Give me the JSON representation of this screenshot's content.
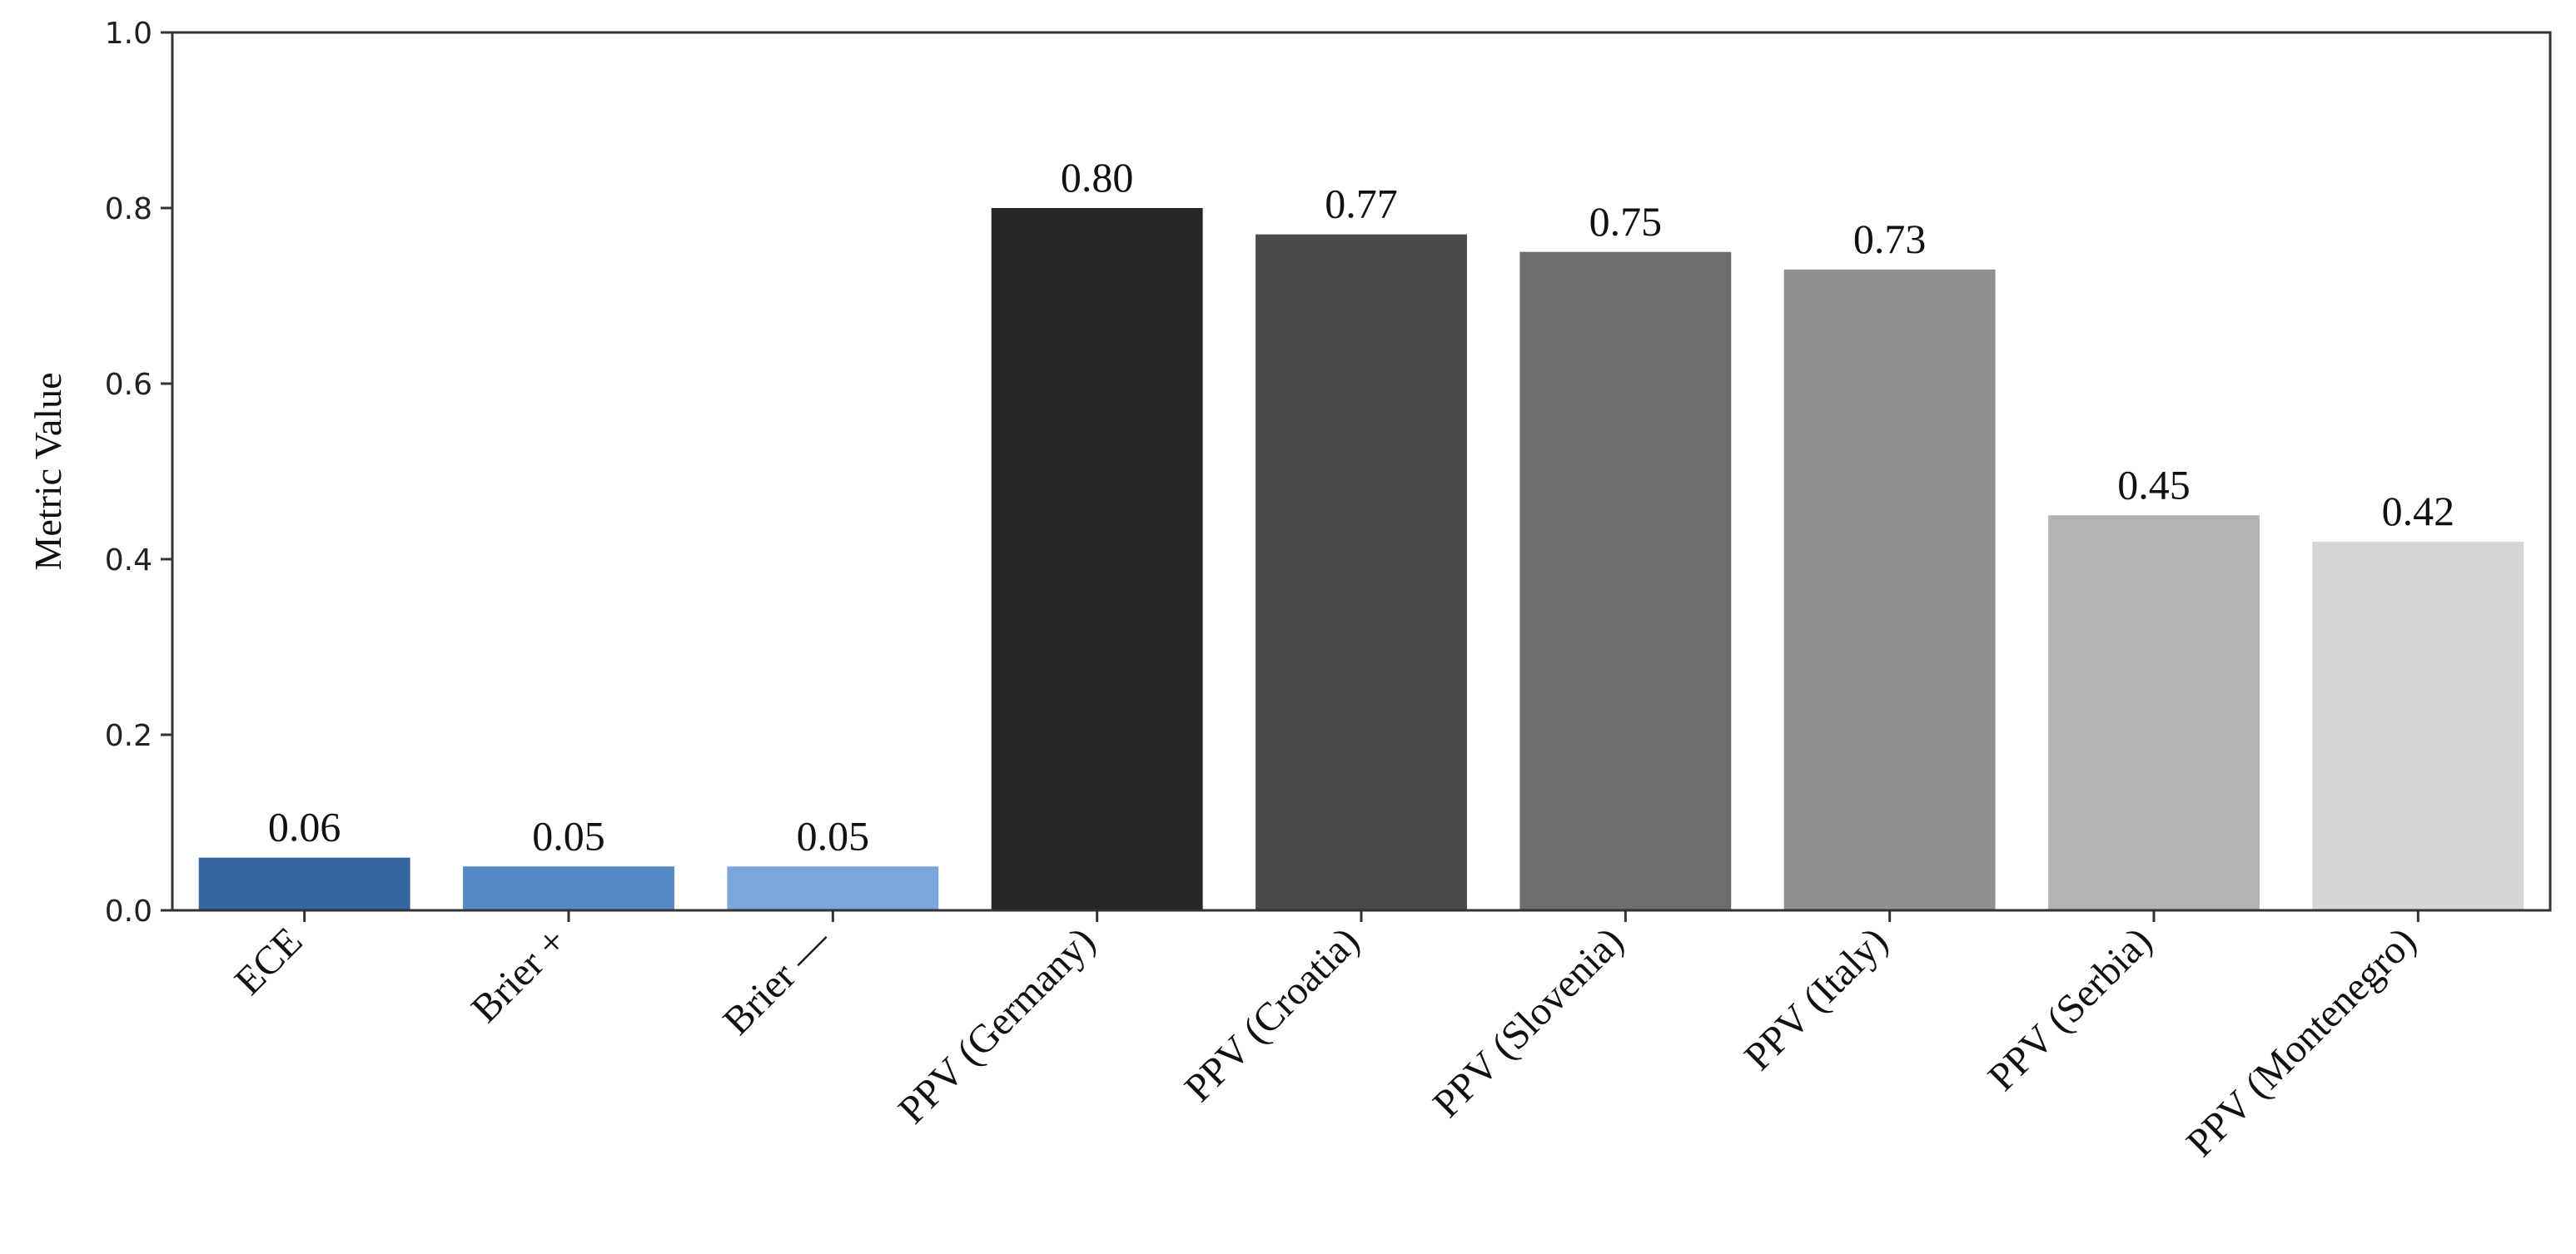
{
  "chart_data": {
    "type": "bar",
    "categories": [
      "ECE",
      "Brier +",
      "Brier —",
      "PPV (Germany)",
      "PPV (Croatia)",
      "PPV (Slovenia)",
      "PPV (Italy)",
      "PPV (Serbia)",
      "PPV (Montenegro)"
    ],
    "values": [
      0.06,
      0.05,
      0.05,
      0.8,
      0.77,
      0.75,
      0.73,
      0.45,
      0.42
    ],
    "value_labels": [
      "0.06",
      "0.05",
      "0.05",
      "0.80",
      "0.77",
      "0.75",
      "0.73",
      "0.45",
      "0.42"
    ],
    "colors": [
      "#3765a3",
      "#5588c6",
      "#7ca5d9",
      "#262626",
      "#4a4a4a",
      "#6d6d6d",
      "#909090",
      "#b3b3b3",
      "#d6d6d6"
    ],
    "ylabel": "Metric Value",
    "xlabel": "",
    "ylim": [
      0,
      1.0
    ],
    "yticks": [
      0.0,
      0.2,
      0.4,
      0.6,
      0.8,
      1.0
    ],
    "ytick_labels": [
      "0.0",
      "0.2",
      "0.4",
      "0.6",
      "0.8",
      "1.0"
    ],
    "grid": false,
    "legend": "none"
  }
}
